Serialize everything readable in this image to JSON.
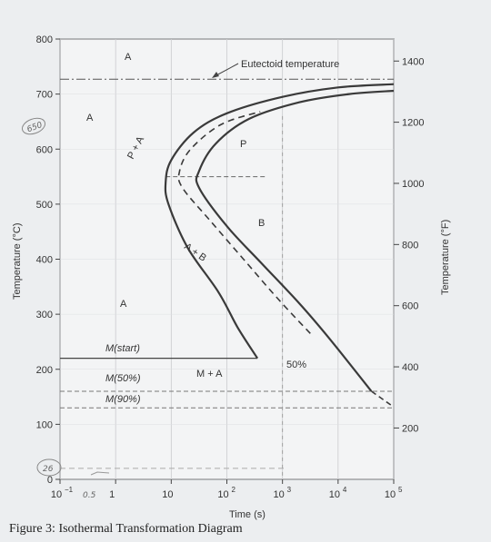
{
  "chart_data": {
    "type": "diagram",
    "caption": "Figure 3: Isothermal Transformation Diagram",
    "xlabel": "Time (s)",
    "ylabel_left": "Temperature (°C)",
    "ylabel_right": "Temperature (°F)",
    "x_scale": "log",
    "x_range_s": [
      0.1,
      100000
    ],
    "x_tick_labels": [
      "10",
      "1",
      "10",
      "10",
      "10",
      "10",
      "10"
    ],
    "x_tick_exponents": [
      "−1",
      "",
      "",
      "2",
      "3",
      "4",
      "5"
    ],
    "x_tick_values_s": [
      0.1,
      1,
      10,
      100,
      1000,
      10000,
      100000
    ],
    "y_left_range_c": [
      0,
      800
    ],
    "y_left_ticks": [
      "800",
      "700",
      "600",
      "500",
      "400",
      "300",
      "200",
      "100",
      "0"
    ],
    "y_right_ticks": [
      "1400",
      "1200",
      "1000",
      "800",
      "600",
      "400",
      "200"
    ],
    "region_labels": {
      "austenite_top": "A",
      "austenite_left": "A",
      "austenite_bottom": "A",
      "pearlite": "P",
      "bainite": "B",
      "martensite_austenite": "M + A",
      "pa_mix": "P + A",
      "ab_mix": "A + B"
    },
    "annotations": {
      "eutectoid": "Eutectoid temperature",
      "fifty_percent": "50%",
      "m_start": "M(start)",
      "m50": "M(50%)",
      "m90": "M(90%)"
    },
    "handwritten": {
      "temp_650": "650",
      "temp_26": "26",
      "time_05": "0.5"
    },
    "reference_temps_c": {
      "eutectoid": 727,
      "m_start": 220,
      "m50": 160,
      "m90": 130
    },
    "curves": [
      {
        "name": "start",
        "points_log10s_c": [
          [
            2.55,
            220
          ],
          [
            2.2,
            275
          ],
          [
            1.85,
            340
          ],
          [
            1.3,
            420
          ],
          [
            0.95,
            500
          ],
          [
            0.9,
            540
          ],
          [
            1.0,
            580
          ],
          [
            1.4,
            630
          ],
          [
            2.0,
            665
          ],
          [
            3.0,
            695
          ],
          [
            4.0,
            712
          ],
          [
            5.0,
            718
          ]
        ]
      },
      {
        "name": "completion",
        "points_log10s_c": [
          [
            4.6,
            160
          ],
          [
            3.85,
            255
          ],
          [
            3.3,
            320
          ],
          [
            2.6,
            395
          ],
          [
            2.0,
            460
          ],
          [
            1.5,
            530
          ],
          [
            1.5,
            560
          ],
          [
            1.8,
            610
          ],
          [
            2.4,
            655
          ],
          [
            3.3,
            685
          ],
          [
            4.2,
            700
          ],
          [
            5.0,
            706
          ]
        ]
      },
      {
        "name": "fifty-percent",
        "points_log10s_c": [
          [
            3.5,
            265
          ],
          [
            2.9,
            330
          ],
          [
            2.3,
            400
          ],
          [
            1.7,
            470
          ],
          [
            1.2,
            530
          ],
          [
            1.15,
            560
          ],
          [
            1.35,
            600
          ],
          [
            1.9,
            645
          ],
          [
            2.6,
            668
          ]
        ]
      }
    ]
  }
}
